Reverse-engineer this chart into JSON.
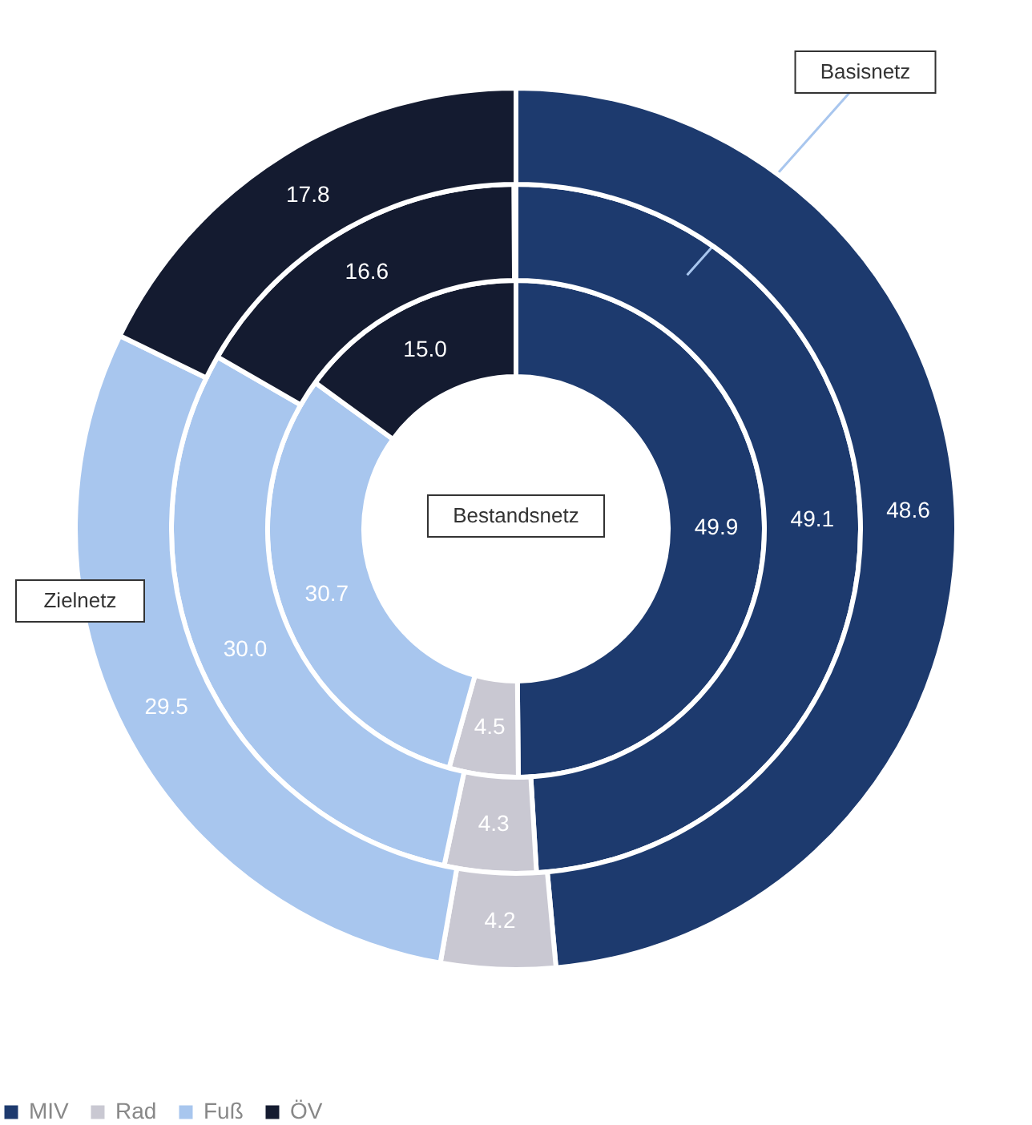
{
  "chart_data": {
    "type": "donut",
    "categories": [
      "MIV",
      "Rad",
      "Fuß",
      "ÖV"
    ],
    "colors": [
      "#1d3a6e",
      "#c9c8d2",
      "#a8c6ee",
      "#141b30"
    ],
    "series": [
      {
        "name": "Bestandsnetz",
        "values": [
          49.9,
          4.5,
          30.7,
          15.0
        ],
        "value_labels": [
          "49.9",
          "4.5",
          "30.7",
          "15.0"
        ]
      },
      {
        "name": "Basisnetz",
        "values": [
          49.1,
          4.3,
          30.0,
          16.6
        ],
        "value_labels": [
          "49.1",
          "4.3",
          "30.0",
          "16.6"
        ]
      },
      {
        "name": "Zielnetz",
        "values": [
          48.6,
          4.2,
          29.5,
          17.8
        ],
        "value_labels": [
          "48.6",
          "4.2",
          "29.5",
          "17.8"
        ]
      }
    ],
    "legend": "bottom"
  }
}
